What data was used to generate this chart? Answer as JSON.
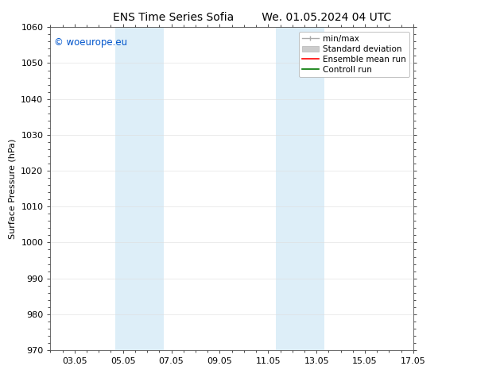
{
  "title_left": "ENS Time Series Sofia",
  "title_right": "We. 01.05.2024 04 UTC",
  "ylabel": "Surface Pressure (hPa)",
  "ylim": [
    970,
    1060
  ],
  "yticks": [
    970,
    980,
    990,
    1000,
    1010,
    1020,
    1030,
    1040,
    1050,
    1060
  ],
  "xlim_start": 0.0,
  "xlim_end": 15.0,
  "xtick_positions": [
    1.0,
    3.0,
    5.0,
    7.0,
    9.0,
    11.0,
    13.0,
    15.0
  ],
  "xtick_labels": [
    "03.05",
    "05.05",
    "07.05",
    "09.05",
    "11.05",
    "13.05",
    "15.05",
    "17.05"
  ],
  "shaded_bands": [
    {
      "xmin": 2.67,
      "xmax": 4.67,
      "color": "#ddeef8"
    },
    {
      "xmin": 9.33,
      "xmax": 11.33,
      "color": "#ddeef8"
    }
  ],
  "copyright_text": "© woeurope.eu",
  "copyright_color": "#0055cc",
  "copyright_fontsize": 8.5,
  "background_color": "#ffffff",
  "title_fontsize": 10,
  "ylabel_fontsize": 8,
  "tick_labelsize": 8,
  "legend_fontsize": 7.5,
  "minmax_color": "#aaaaaa",
  "stddev_color": "#cccccc",
  "mean_color": "#ff0000",
  "control_color": "#007700"
}
